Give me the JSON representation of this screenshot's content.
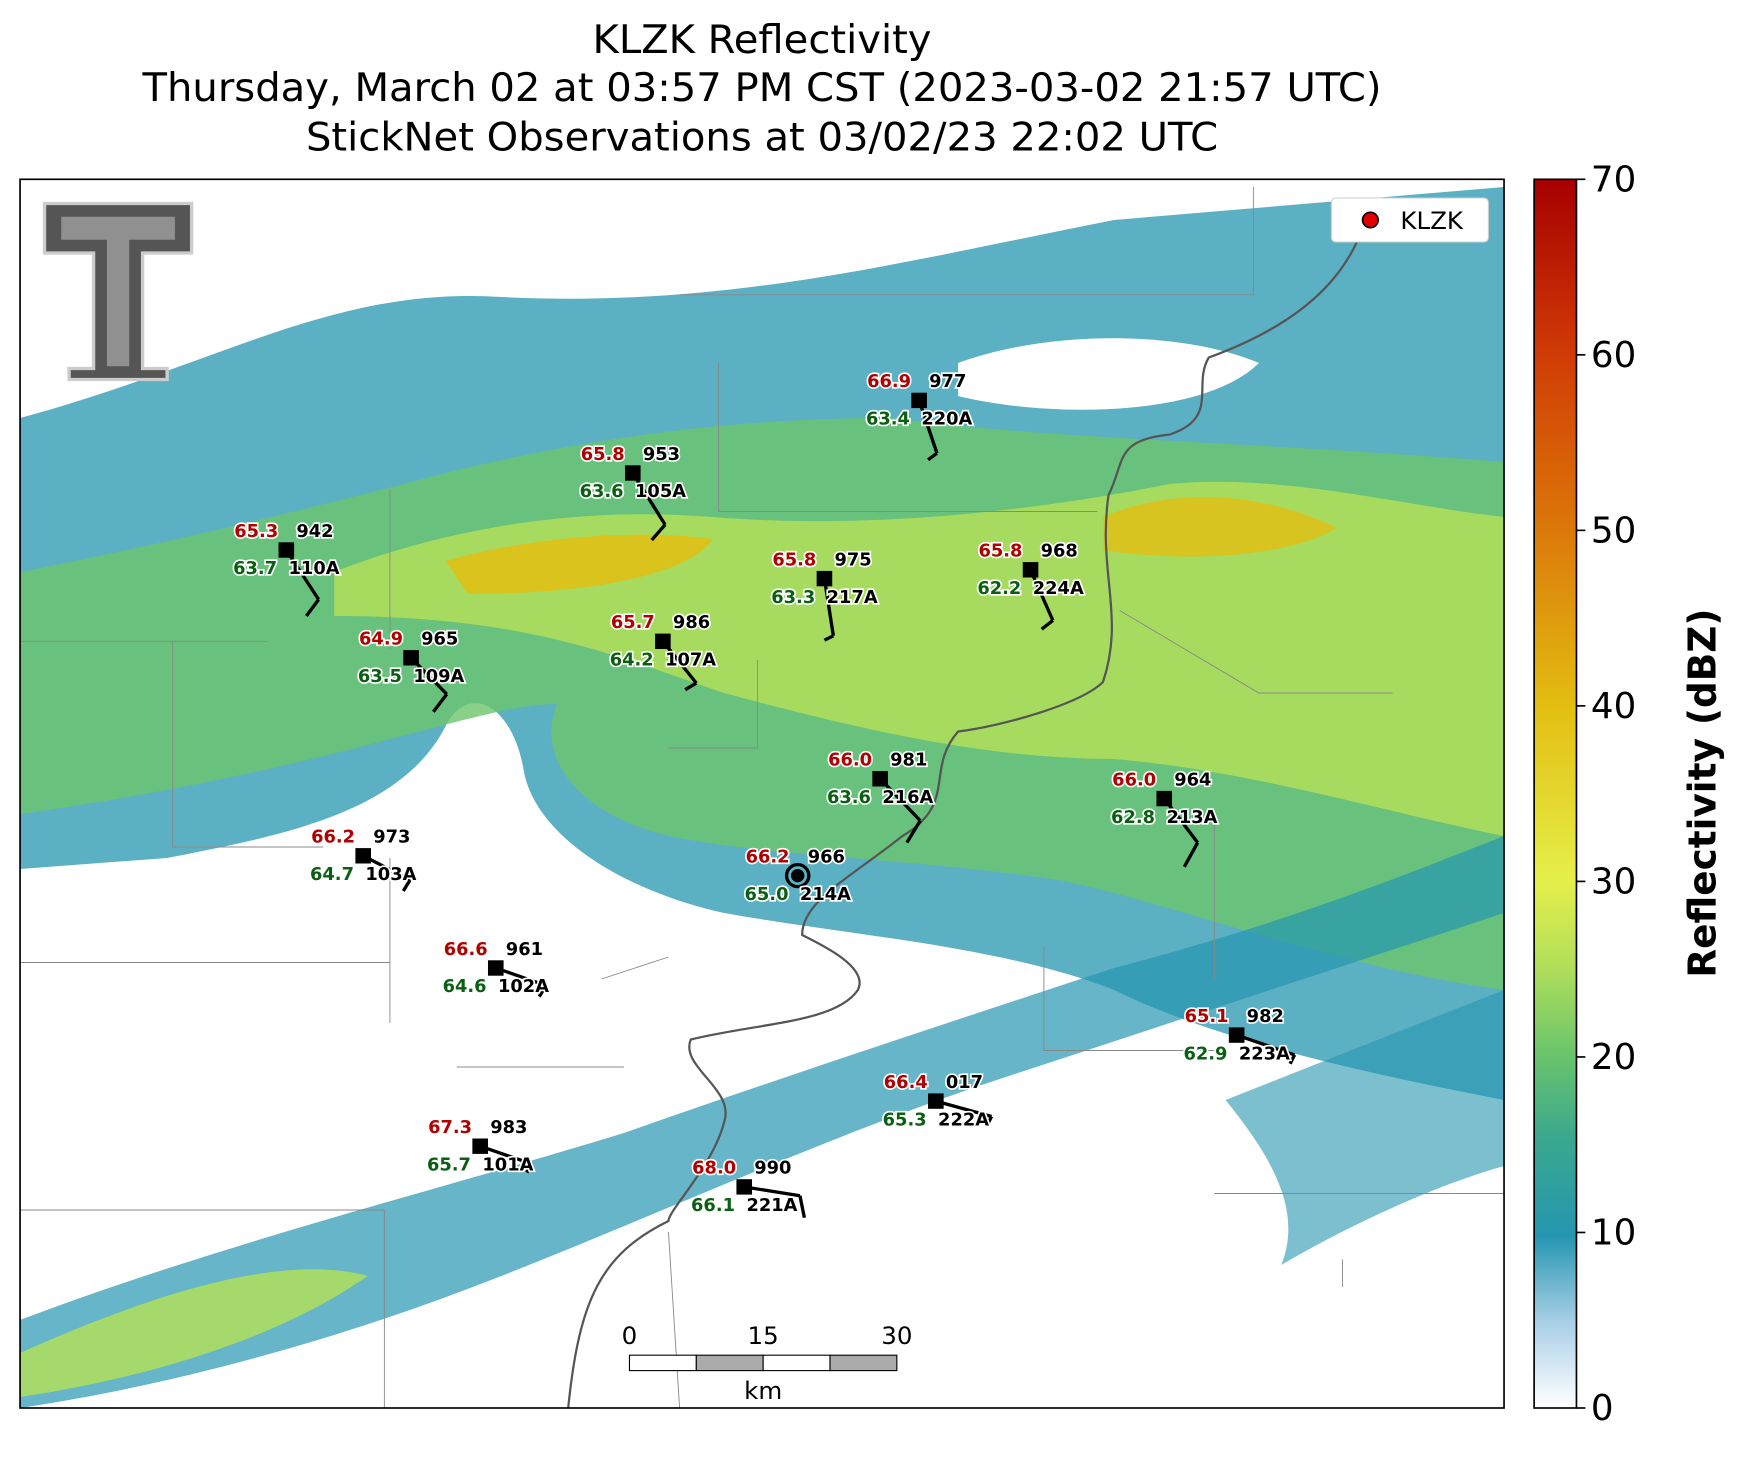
{
  "header": {
    "title": "KLZK Reflectivity",
    "subtitle": "Thursday, March 02 at 03:57 PM CST (2023-03-02 21:57 UTC)",
    "observations": "StickNet Observations at 03/02/23 22:02 UTC"
  },
  "legend": {
    "label": "KLZK"
  },
  "colorbar": {
    "label": "Reflectivity (dBZ)",
    "lim": [
      0,
      70
    ],
    "ticks": [
      0,
      10,
      20,
      30,
      40,
      50,
      60,
      70
    ]
  },
  "scalebar": {
    "ticks": [
      "0",
      "15",
      "30"
    ],
    "unit": "km"
  },
  "stations": [
    {
      "id": "110A",
      "temperature": "65.3",
      "dewpoint": "63.7",
      "pressure": "942"
    },
    {
      "id": "105A",
      "temperature": "65.8",
      "dewpoint": "63.6",
      "pressure": "953"
    },
    {
      "id": "220A",
      "temperature": "66.9",
      "dewpoint": "63.4",
      "pressure": "977"
    },
    {
      "id": "217A",
      "temperature": "65.8",
      "dewpoint": "63.3",
      "pressure": "975"
    },
    {
      "id": "224A",
      "temperature": "65.8",
      "dewpoint": "62.2",
      "pressure": "968"
    },
    {
      "id": "109A",
      "temperature": "64.9",
      "dewpoint": "63.5",
      "pressure": "965"
    },
    {
      "id": "107A",
      "temperature": "65.7",
      "dewpoint": "64.2",
      "pressure": "986"
    },
    {
      "id": "216A",
      "temperature": "66.0",
      "dewpoint": "63.6",
      "pressure": "981"
    },
    {
      "id": "213A",
      "temperature": "66.0",
      "dewpoint": "62.8",
      "pressure": "964"
    },
    {
      "id": "103A",
      "temperature": "66.2",
      "dewpoint": "64.7",
      "pressure": "973"
    },
    {
      "id": "214A",
      "temperature": "66.2",
      "dewpoint": "65.0",
      "pressure": "966"
    },
    {
      "id": "102A",
      "temperature": "66.6",
      "dewpoint": "64.6",
      "pressure": "961"
    },
    {
      "id": "223A",
      "temperature": "65.1",
      "dewpoint": "62.9",
      "pressure": "982"
    },
    {
      "id": "222A",
      "temperature": "66.4",
      "dewpoint": "65.3",
      "pressure": "017"
    },
    {
      "id": "101A",
      "temperature": "67.3",
      "dewpoint": "65.7",
      "pressure": "983"
    },
    {
      "id": "221A",
      "temperature": "68.0",
      "dewpoint": "66.1",
      "pressure": "990"
    }
  ]
}
